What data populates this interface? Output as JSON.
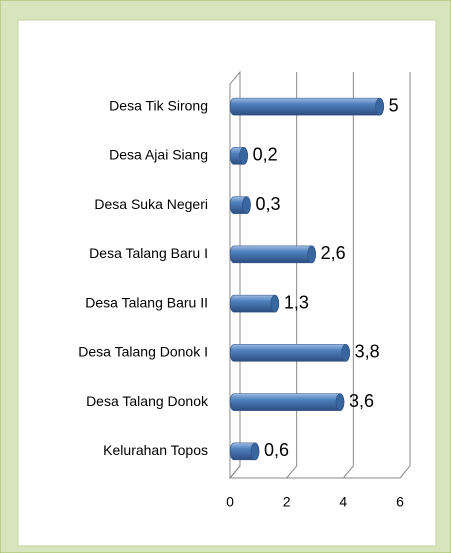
{
  "chart_data": {
    "type": "bar",
    "orientation": "horizontal",
    "categories": [
      "Desa Tik Sirong",
      "Desa Ajai Siang",
      "Desa Suka Negeri",
      "Desa Talang Baru I",
      "Desa Talang Baru II",
      "Desa Talang Donok I",
      "Desa Talang Donok",
      "Kelurahan Topos"
    ],
    "values": [
      5,
      0.2,
      0.3,
      2.6,
      1.3,
      3.8,
      3.6,
      0.6
    ],
    "value_labels": [
      "5",
      "0,2",
      "0,3",
      "2,6",
      "1,3",
      "3,8",
      "3,6",
      "0,6"
    ],
    "color": "#4f81bd",
    "xlim": [
      0,
      6
    ],
    "xticks": [
      0,
      2,
      4,
      6
    ],
    "grid": true
  }
}
